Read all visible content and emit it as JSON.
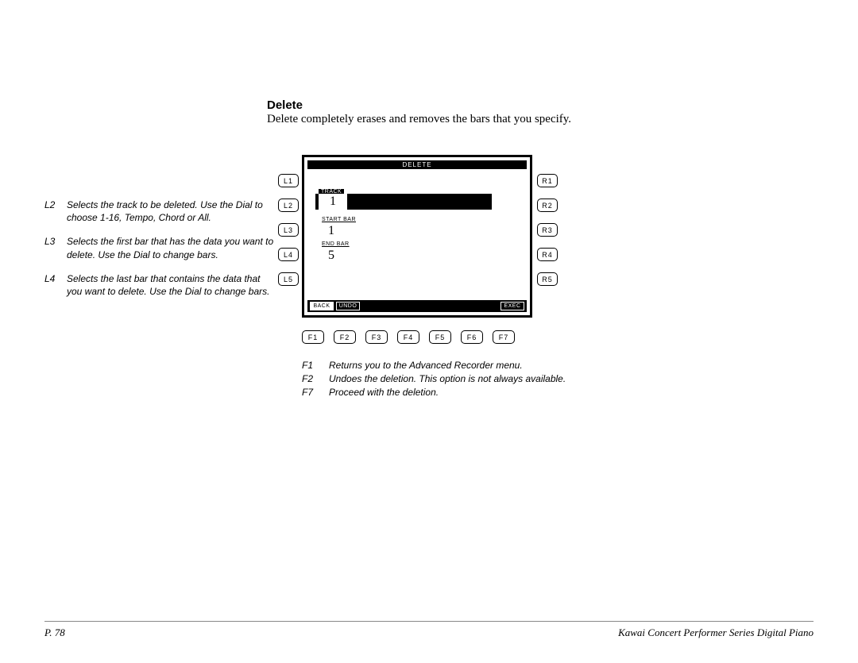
{
  "heading": "Delete",
  "subheading": "Delete completely erases and removes the bars that you specify.",
  "left_notes": [
    {
      "key": "L2",
      "text": "Selects the track to be deleted. Use the Dial to choose 1-16, Tempo, Chord or All."
    },
    {
      "key": "L3",
      "text": "Selects the first bar that has the data you want to delete. Use the Dial to change bars."
    },
    {
      "key": "L4",
      "text": "Selects the last bar that contains the data that you want to delete. Use the Dial to change bars."
    }
  ],
  "screen": {
    "title": "DELETE",
    "track_label": "TRACK",
    "track_value": "1",
    "start_label": "START BAR",
    "start_value": "1",
    "end_label": "END BAR",
    "end_value": "5",
    "softkeys": {
      "back": "BACK",
      "undo": "UNDO",
      "exec": "EXEC"
    }
  },
  "side_buttons": {
    "left": [
      "L1",
      "L2",
      "L3",
      "L4",
      "L5"
    ],
    "right": [
      "R1",
      "R2",
      "R3",
      "R4",
      "R5"
    ]
  },
  "f_buttons": [
    "F1",
    "F2",
    "F3",
    "F4",
    "F5",
    "F6",
    "F7"
  ],
  "f_notes": [
    {
      "key": "F1",
      "text": "Returns you to the Advanced Recorder menu."
    },
    {
      "key": "F2",
      "text": "Undoes the deletion. This option is not always available."
    },
    {
      "key": "F7",
      "text": "Proceed with the deletion."
    }
  ],
  "footer": {
    "page": "P. 78",
    "title": "Kawai Concert Performer Series Digital Piano"
  }
}
